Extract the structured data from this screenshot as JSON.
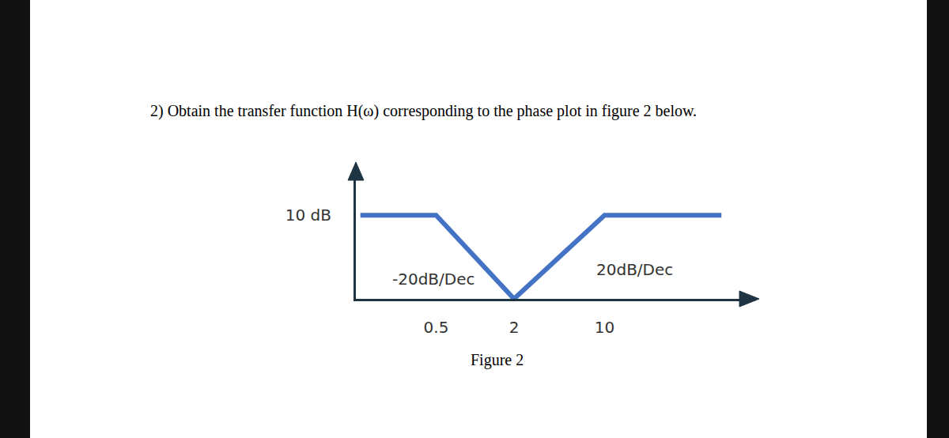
{
  "chart_data": {
    "type": "line",
    "title": "2) Obtain the transfer function H(ω) corresponding to the phase plot in figure 2 below.",
    "caption": "Figure 2",
    "x": [
      0.13,
      0.5,
      2,
      10,
      80
    ],
    "values": [
      10,
      10,
      0,
      10,
      10
    ],
    "color": "#4472c4",
    "log": "x",
    "xlim": [
      0.12,
      146
    ],
    "ylim": [
      0,
      15.7
    ],
    "xticks": [
      0.5,
      2,
      10
    ],
    "yticks": [
      {
        "value": 10,
        "label": "10 dB"
      }
    ],
    "grid": false,
    "annotations": [
      {
        "text": "-20dB/Dec"
      },
      {
        "text": "20dB/Dec"
      }
    ]
  }
}
